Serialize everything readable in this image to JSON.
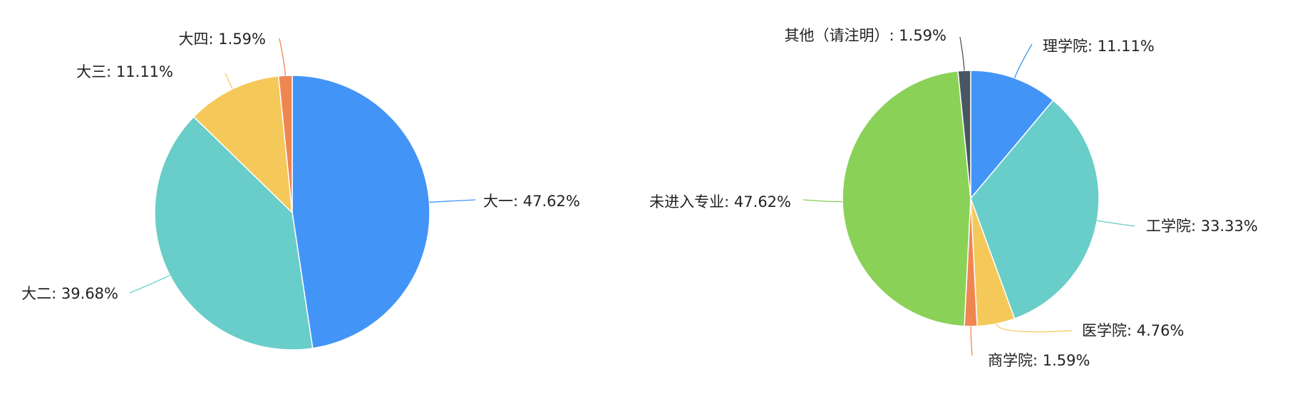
{
  "chart_data": [
    {
      "type": "pie",
      "title": "",
      "slices": [
        {
          "label": "大一",
          "value": 47.62,
          "text": "大一: 47.62%",
          "color": "#4394f7"
        },
        {
          "label": "大二",
          "value": 39.68,
          "text": "大二: 39.68%",
          "color": "#69cdc9"
        },
        {
          "label": "大三",
          "value": 11.11,
          "text": "大三: 11.11%",
          "color": "#f5c85a"
        },
        {
          "label": "大四",
          "value": 1.59,
          "text": "大四: 1.59%",
          "color": "#ef8652"
        }
      ]
    },
    {
      "type": "pie",
      "title": "",
      "slices": [
        {
          "label": "理学院",
          "value": 11.11,
          "text": "理学院: 11.11%",
          "color": "#4394f7"
        },
        {
          "label": "工学院",
          "value": 33.33,
          "text": "工学院: 33.33%",
          "color": "#69cdc9"
        },
        {
          "label": "医学院",
          "value": 4.76,
          "text": "医学院: 4.76%",
          "color": "#f5c85a"
        },
        {
          "label": "商学院",
          "value": 1.59,
          "text": "商学院: 1.59%",
          "color": "#ef8652"
        },
        {
          "label": "未进入专业",
          "value": 47.62,
          "text": "未进入专业: 47.62%",
          "color": "#8ad158"
        },
        {
          "label": "其他（请注明）",
          "value": 1.59,
          "text": "其他（请注明）: 1.59%",
          "color": "#475761"
        }
      ]
    }
  ]
}
